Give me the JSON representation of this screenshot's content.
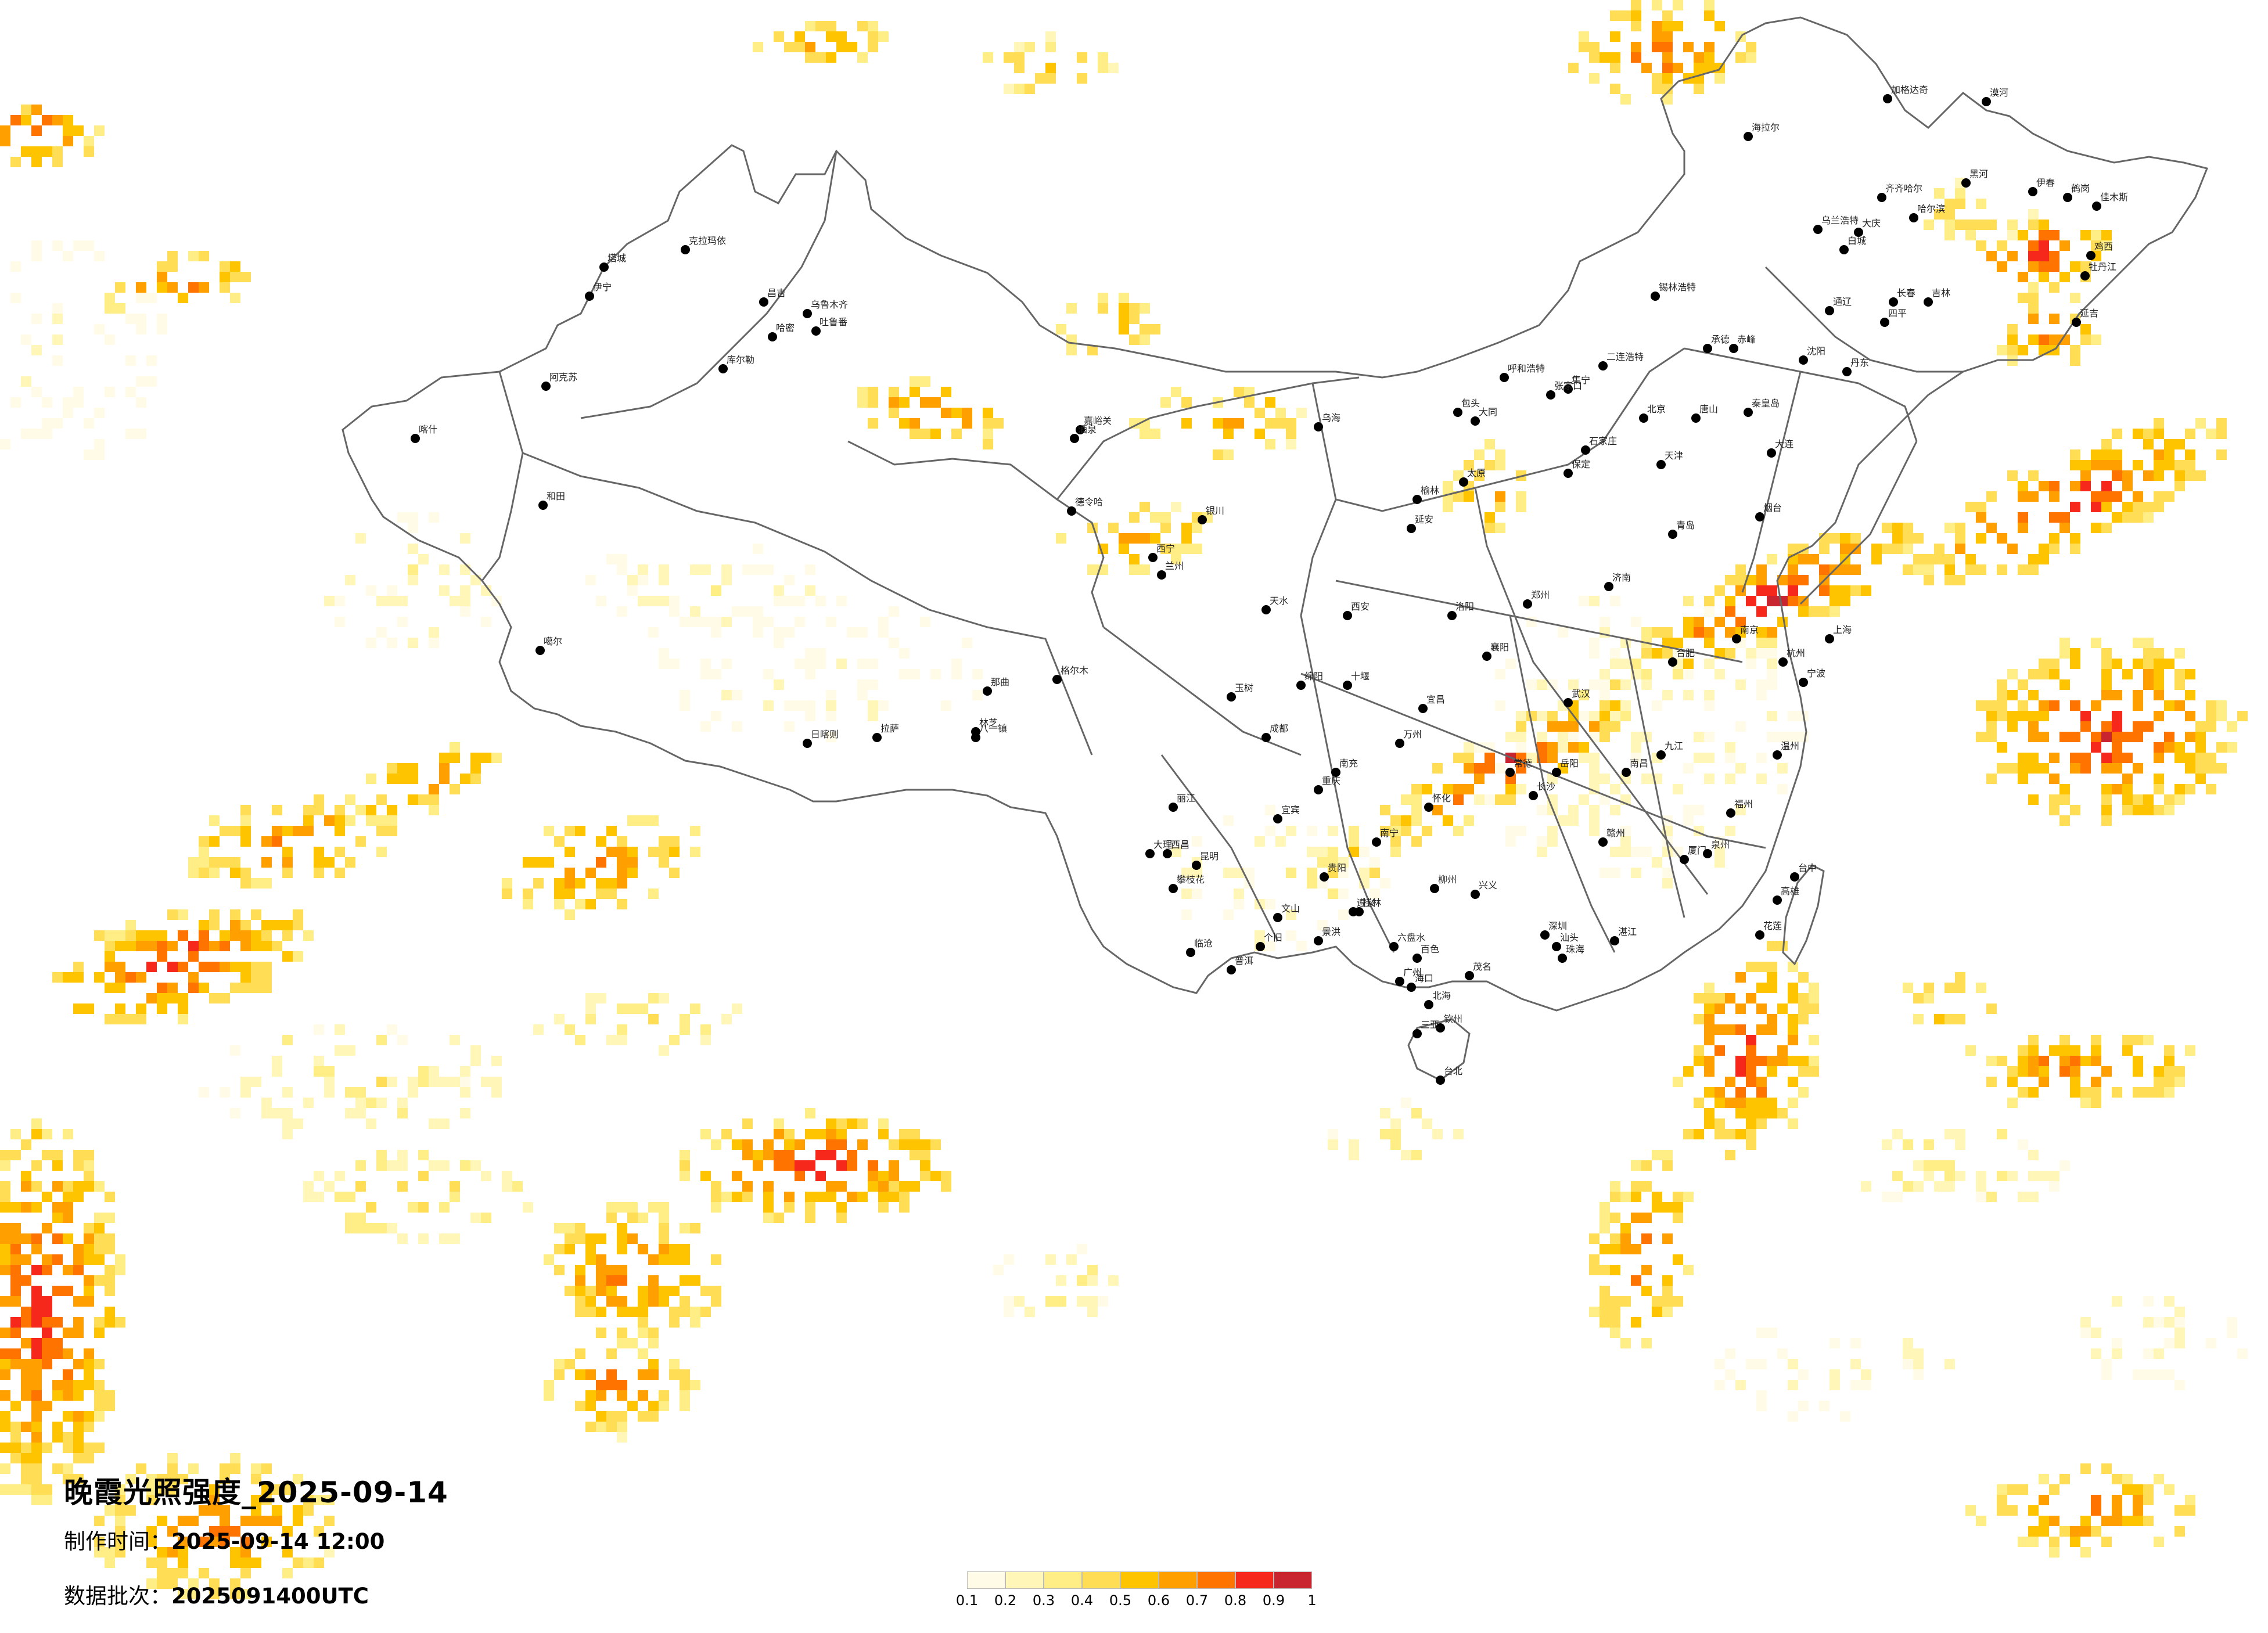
{
  "title": "晚霞光照强度_2025-09-14",
  "production_time": {
    "label": "制作时间：",
    "value": "2025-09-14 12:00"
  },
  "data_batch": {
    "label": "数据批次：",
    "value": "2025091400UTC"
  },
  "legend": {
    "ticks": [
      "0.1",
      "0.2",
      "0.3",
      "0.4",
      "0.5",
      "0.6",
      "0.7",
      "0.8",
      "0.9",
      "1"
    ],
    "colors": [
      "#fffbe6",
      "#fff6b8",
      "#ffee85",
      "#ffde55",
      "#ffc400",
      "#ffa000",
      "#ff7300",
      "#f5281b",
      "#c82531"
    ]
  },
  "map_labels": [
    "克拉玛依",
    "伊宁",
    "塔城",
    "昌吉",
    "乌鲁木齐",
    "吐鲁番",
    "库尔勒",
    "阿克苏",
    "喀什",
    "和田",
    "哈密",
    "嘉峪关",
    "酒泉",
    "德令哈",
    "格尔木",
    "噶尔",
    "日喀则",
    "拉萨",
    "林芝",
    "那曲",
    "八一镇",
    "玉树",
    "海拉尔",
    "加格达奇",
    "漠河",
    "黑河",
    "伊春",
    "鹤岗",
    "佳木斯",
    "齐齐哈尔",
    "大庆",
    "哈尔滨",
    "牡丹江",
    "鸡西",
    "乌兰浩特",
    "白城",
    "长春",
    "吉林",
    "延吉",
    "四平",
    "通辽",
    "锡林浩特",
    "赤峰",
    "呼和浩特",
    "包头",
    "乌海",
    "二连浩特",
    "集宁",
    "张家口",
    "承德",
    "北京",
    "天津",
    "唐山",
    "秦皇岛",
    "沈阳",
    "大连",
    "丹东",
    "石家庄",
    "保定",
    "太原",
    "大同",
    "银川",
    "西宁",
    "兰州",
    "天水",
    "西安",
    "延安",
    "榆林",
    "郑州",
    "洛阳",
    "济南",
    "青岛",
    "烟台",
    "合肥",
    "南京",
    "上海",
    "杭州",
    "宁波",
    "温州",
    "福州",
    "厦门",
    "泉州",
    "南昌",
    "九江",
    "赣州",
    "长沙",
    "岳阳",
    "常德",
    "怀化",
    "武汉",
    "宜昌",
    "襄阳",
    "十堰",
    "重庆",
    "万州",
    "成都",
    "绵阳",
    "南充",
    "宜宾",
    "西昌",
    "攀枝花",
    "昆明",
    "大理",
    "丽江",
    "临沧",
    "普洱",
    "景洪",
    "个旧",
    "文山",
    "贵阳",
    "遵义",
    "六盘水",
    "兴义",
    "南宁",
    "桂林",
    "柳州",
    "百色",
    "北海",
    "钦州",
    "广州",
    "深圳",
    "珠海",
    "汕头",
    "湛江",
    "茂名",
    "海口",
    "三亚",
    "台北",
    "台中",
    "高雄",
    "花莲"
  ]
}
